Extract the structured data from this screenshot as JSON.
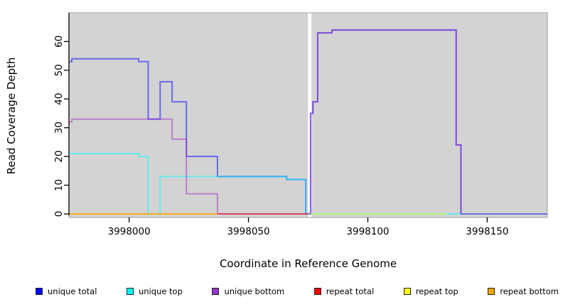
{
  "chart_data": {
    "type": "line",
    "subtype": "step-coverage-plot",
    "title": "",
    "xlabel": "Coordinate in Reference Genome",
    "ylabel": "Read Coverage Depth",
    "xlim": [
      3997974.8,
      3998175.2
    ],
    "ylim": [
      0,
      70
    ],
    "x_ticks": [
      "3998000",
      "3998050",
      "3998100",
      "3998150"
    ],
    "x_tick_values": [
      3998000,
      3998050,
      3998100,
      3998150
    ],
    "y_ticks": [
      "0",
      "10",
      "20",
      "30",
      "40",
      "50",
      "60"
    ],
    "y_tick_values": [
      0,
      10,
      20,
      30,
      40,
      50,
      60
    ],
    "grid": "off",
    "legend_position": "bottom",
    "panel_bg": "#d3d3d3",
    "panel_border": "#9c9c9c",
    "gap_band": {
      "x0": 3998074.9,
      "x1": 3998076.4,
      "color": "#ffffff"
    },
    "line_alpha": 0.5,
    "line_width": 2,
    "series": [
      {
        "name": "unique total",
        "color": "#0000ff",
        "segments": [
          [
            [
              3997974.8,
              53
            ],
            [
              3997976,
              53
            ],
            [
              3997976,
              54
            ],
            [
              3998004,
              54
            ],
            [
              3998004,
              53
            ],
            [
              3998008,
              53
            ],
            [
              3998008,
              33
            ],
            [
              3998013,
              33
            ],
            [
              3998013,
              46
            ],
            [
              3998018,
              46
            ],
            [
              3998018,
              39
            ],
            [
              3998024,
              39
            ],
            [
              3998024,
              20
            ],
            [
              3998037,
              20
            ],
            [
              3998037,
              13
            ],
            [
              3998066,
              13
            ],
            [
              3998066,
              12
            ],
            [
              3998074,
              12
            ],
            [
              3998074,
              0
            ],
            [
              3998076,
              0
            ],
            [
              3998076,
              35
            ],
            [
              3998077,
              35
            ],
            [
              3998077,
              39
            ],
            [
              3998079,
              39
            ],
            [
              3998079,
              63
            ],
            [
              3998085,
              63
            ],
            [
              3998085,
              64
            ],
            [
              3998137,
              64
            ],
            [
              3998137,
              24
            ],
            [
              3998139,
              24
            ],
            [
              3998139,
              0
            ],
            [
              3998175.2,
              0
            ]
          ]
        ]
      },
      {
        "name": "unique top",
        "color": "#00ffff",
        "segments": [
          [
            [
              3997974.8,
              21
            ],
            [
              3998004,
              21
            ],
            [
              3998004,
              20
            ],
            [
              3998008,
              20
            ],
            [
              3998008,
              0
            ],
            [
              3998013,
              0
            ],
            [
              3998013,
              13
            ],
            [
              3998066,
              13
            ],
            [
              3998066,
              12
            ],
            [
              3998074,
              12
            ],
            [
              3998074,
              0
            ],
            [
              3998175.2,
              0
            ]
          ]
        ]
      },
      {
        "name": "unique bottom",
        "color": "#9932cc",
        "segments": [
          [
            [
              3997974.8,
              32
            ],
            [
              3997976,
              32
            ],
            [
              3997976,
              33
            ],
            [
              3998018,
              33
            ],
            [
              3998018,
              26
            ],
            [
              3998024,
              26
            ],
            [
              3998024,
              7
            ],
            [
              3998037,
              7
            ],
            [
              3998037,
              0
            ],
            [
              3998076,
              0
            ],
            [
              3998076,
              35
            ],
            [
              3998077,
              35
            ],
            [
              3998077,
              39
            ],
            [
              3998079,
              39
            ],
            [
              3998079,
              63
            ],
            [
              3998085,
              63
            ],
            [
              3998085,
              64
            ],
            [
              3998137,
              64
            ],
            [
              3998137,
              24
            ],
            [
              3998139,
              24
            ],
            [
              3998139,
              0
            ],
            [
              3998175.2,
              0
            ]
          ]
        ]
      },
      {
        "name": "repeat total",
        "color": "#ff0000",
        "segments": [
          [
            [
              3997974.8,
              0
            ],
            [
              3998075,
              0
            ]
          ]
        ]
      },
      {
        "name": "repeat top",
        "color": "#ffff00",
        "segments": [
          [
            [
              3997974.8,
              0
            ],
            [
              3998037,
              0
            ]
          ],
          [
            [
              3998076,
              0
            ],
            [
              3998133,
              0
            ]
          ]
        ]
      },
      {
        "name": "repeat bottom",
        "color": "#ffa500",
        "segments": [
          [
            [
              3997974.8,
              0
            ],
            [
              3998037,
              0
            ]
          ]
        ]
      }
    ]
  }
}
